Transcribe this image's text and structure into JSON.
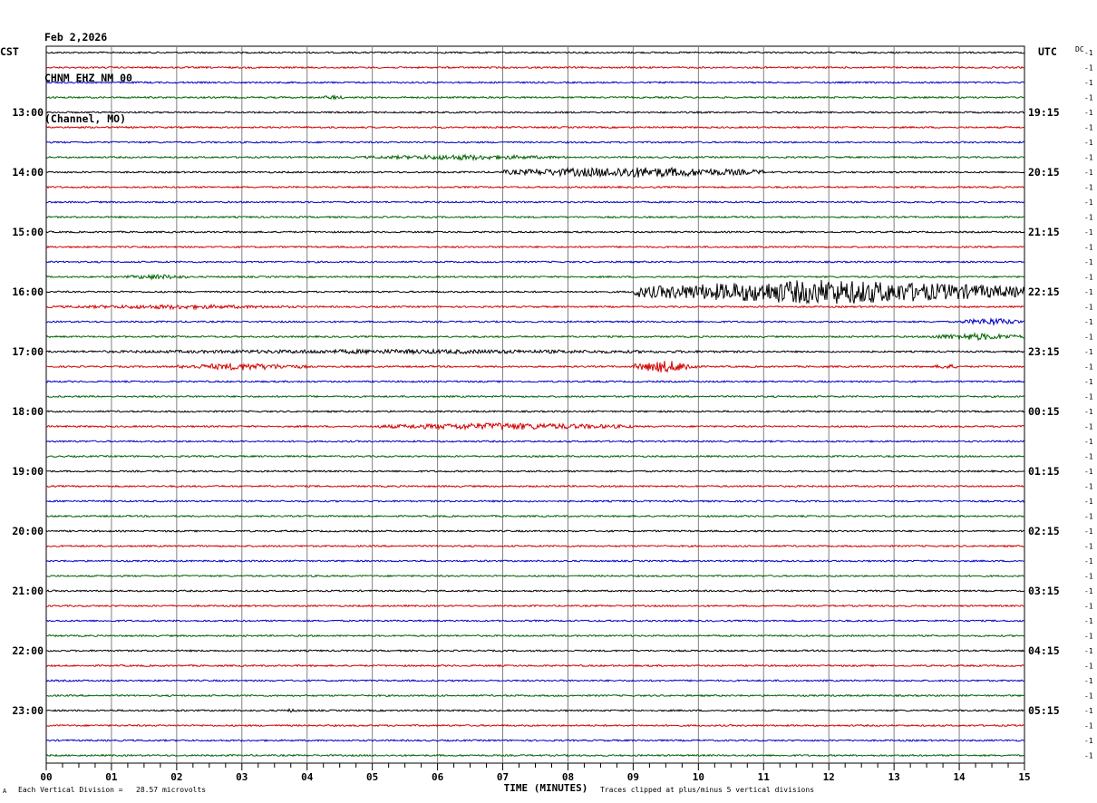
{
  "header": {
    "date": "Feb 2,2026",
    "station": "CHNM EHZ NM 00",
    "channel": "(Channel, MO)"
  },
  "left_timezone": "CST",
  "right_timezone": "UTC",
  "dc_label": "DC",
  "footer": {
    "vertical_division": "Each Vertical Division =   28.57 microvolts",
    "clip_note": "Traces clipped at plus/minus 5 vertical divisions",
    "corner_mark": "A"
  },
  "colors": {
    "trace_cycle": [
      "#000000",
      "#d40000",
      "#0000c8",
      "#006400"
    ],
    "grid": "#808080"
  },
  "chart_data": {
    "type": "line",
    "title": "",
    "xlabel": "TIME (MINUTES)",
    "x_ticks": [
      "00",
      "01",
      "02",
      "03",
      "04",
      "05",
      "06",
      "07",
      "08",
      "09",
      "10",
      "11",
      "12",
      "13",
      "14",
      "15"
    ],
    "xlim": [
      0,
      15
    ],
    "left_hour_labels": [
      "13:00",
      "14:00",
      "15:00",
      "16:00",
      "17:00",
      "18:00",
      "19:00",
      "20:00",
      "21:00",
      "22:00",
      "23:00"
    ],
    "right_hour_labels": [
      "19:15",
      "20:15",
      "21:15",
      "22:15",
      "23:15",
      "00:15",
      "01:15",
      "02:15",
      "03:15",
      "04:15",
      "05:15"
    ],
    "row_right_label": "-1",
    "rows": 48,
    "events": [
      {
        "row": 3,
        "start_min": 4.2,
        "end_min": 4.6,
        "amp": 2.5
      },
      {
        "row": 7,
        "start_min": 4.8,
        "end_min": 8.0,
        "amp": 3.0
      },
      {
        "row": 8,
        "start_min": 7.0,
        "end_min": 11.0,
        "amp": 6.0
      },
      {
        "row": 15,
        "start_min": 1.2,
        "end_min": 2.2,
        "amp": 3.0
      },
      {
        "row": 16,
        "start_min": 9.0,
        "end_min": 15.0,
        "amp": 14.0
      },
      {
        "row": 17,
        "start_min": 0.0,
        "end_min": 4.0,
        "amp": 2.5
      },
      {
        "row": 18,
        "start_min": 14.0,
        "end_min": 15.0,
        "amp": 4.0
      },
      {
        "row": 19,
        "start_min": 13.5,
        "end_min": 15.0,
        "amp": 4.0
      },
      {
        "row": 20,
        "start_min": 0.0,
        "end_min": 11.0,
        "amp": 2.5
      },
      {
        "row": 21,
        "start_min": 2.0,
        "end_min": 4.0,
        "amp": 4.0
      },
      {
        "row": 21,
        "start_min": 9.0,
        "end_min": 10.0,
        "amp": 7.0
      },
      {
        "row": 21,
        "start_min": 13.6,
        "end_min": 14.0,
        "amp": 3.0
      },
      {
        "row": 25,
        "start_min": 5.0,
        "end_min": 9.0,
        "amp": 4.0
      },
      {
        "row": 44,
        "start_min": 3.6,
        "end_min": 3.9,
        "amp": 2.0
      }
    ]
  }
}
